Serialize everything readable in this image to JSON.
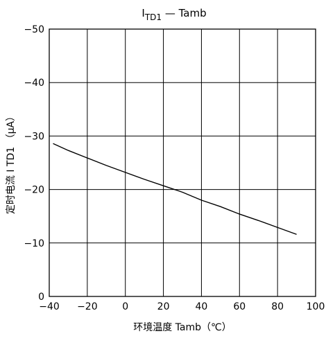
{
  "chart_data": {
    "type": "line",
    "title": "ITD1 — Tamb",
    "title_parts": {
      "main": "I",
      "sub": "TD1",
      "rest": " — Tamb"
    },
    "xlabel": "环境温度 Tamb（℃）",
    "ylabel": "定时电流 I TD1 （μA）",
    "xlim": [
      -40,
      100
    ],
    "ylim": [
      0,
      -50
    ],
    "x_ticks": [
      -40,
      -20,
      0,
      20,
      40,
      60,
      80,
      100
    ],
    "y_ticks": [
      0,
      -10,
      -20,
      -30,
      -40,
      -50
    ],
    "x_tick_labels": [
      "−40",
      "−20",
      "0",
      "20",
      "40",
      "60",
      "80",
      "100"
    ],
    "y_tick_labels": [
      "0",
      "−10",
      "−20",
      "−30",
      "−40",
      "−50"
    ],
    "grid": true,
    "series": [
      {
        "x": [
          -38,
          -30,
          -20,
          -10,
          0,
          10,
          20,
          30,
          40,
          50,
          60,
          70,
          80,
          90
        ],
        "y": [
          -28.6,
          -27.3,
          -25.9,
          -24.5,
          -23.2,
          -21.9,
          -20.7,
          -19.5,
          -18.0,
          -16.8,
          -15.4,
          -14.2,
          -12.9,
          -11.6
        ]
      }
    ],
    "colors": {
      "line": "#000000",
      "grid": "#000000",
      "background": "#ffffff"
    }
  }
}
